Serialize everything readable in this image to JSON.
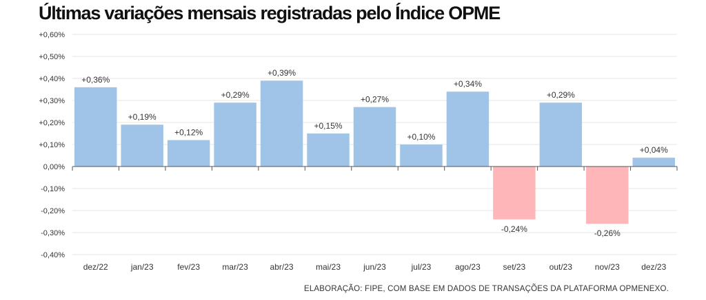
{
  "title": "Últimas variações mensais registradas pelo Índice OPME",
  "source": "ELABORAÇÃO: FIPE, COM BASE EM DADOS DE TRANSAÇÕES DA PLATAFORMA OPMENEXO.",
  "chart_data": {
    "type": "bar",
    "title": "Últimas variações mensais registradas pelo Índice OPME",
    "xlabel": "",
    "ylabel": "",
    "categories": [
      "dez/22",
      "jan/23",
      "fev/23",
      "mar/23",
      "abr/23",
      "mai/23",
      "jun/23",
      "jul/23",
      "ago/23",
      "set/23",
      "out/23",
      "nov/23",
      "dez/23"
    ],
    "values": [
      0.36,
      0.19,
      0.12,
      0.29,
      0.39,
      0.15,
      0.27,
      0.1,
      0.34,
      -0.24,
      0.29,
      -0.26,
      0.04
    ],
    "value_labels": [
      "+0,36%",
      "+0,19%",
      "+0,12%",
      "+0,29%",
      "+0,39%",
      "+0,15%",
      "+0,27%",
      "+0,10%",
      "+0,34%",
      "-0,24%",
      "+0,29%",
      "-0,26%",
      "+0,04%"
    ],
    "ylim": [
      -0.4,
      0.6
    ],
    "yticks": [
      0.6,
      0.5,
      0.4,
      0.3,
      0.2,
      0.1,
      0.0,
      -0.1,
      -0.2,
      -0.3,
      -0.4
    ],
    "ytick_labels": [
      "+0,60%",
      "+0,50%",
      "+0,40%",
      "+0,30%",
      "+0,20%",
      "+0,10%",
      "0,00%",
      "-0,10%",
      "-0,20%",
      "-0,30%",
      "-0,40%"
    ],
    "grid": true,
    "colors": {
      "positive": "#9fc4e8",
      "negative": "#ffb6b9",
      "grid": "#e4e4e4",
      "axis": "#555555"
    }
  }
}
